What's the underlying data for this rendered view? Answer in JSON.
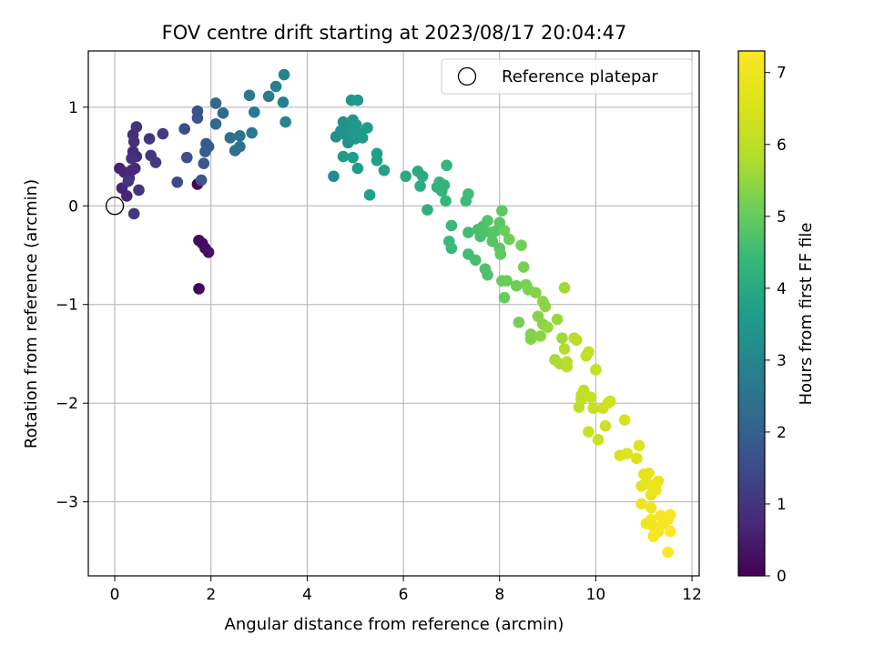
{
  "chart_data": {
    "type": "scatter",
    "title": "FOV centre drift starting at 2023/08/17 20:04:47",
    "xlabel": "Angular distance from reference (arcmin)",
    "ylabel": "Rotation from reference (arcmin)",
    "xlim": [
      -0.55,
      12.15
    ],
    "ylim": [
      -3.75,
      1.57
    ],
    "xticks": [
      0,
      2,
      4,
      6,
      8,
      10,
      12
    ],
    "yticks": [
      1,
      0,
      -1,
      -2,
      -3
    ],
    "xtick_labels": [
      "0",
      "2",
      "4",
      "6",
      "8",
      "10",
      "12"
    ],
    "ytick_labels": [
      "1",
      "0",
      "−1",
      "−2",
      "−3"
    ],
    "grid": true,
    "legend": {
      "placement": "top-right",
      "label": "Reference platepar",
      "marker": "open-circle"
    },
    "reference_point": {
      "x": 0,
      "y": 0
    },
    "colorbar": {
      "label": "Hours from first FF file",
      "colormap": "viridis",
      "range": [
        0,
        7.3
      ],
      "ticks": [
        0,
        1,
        2,
        3,
        4,
        5,
        6,
        7
      ],
      "tick_labels": [
        "0",
        "1",
        "2",
        "3",
        "4",
        "5",
        "6",
        "7"
      ]
    },
    "points": [
      {
        "x": 1.75,
        "y": -0.84,
        "t": 0.05
      },
      {
        "x": 1.72,
        "y": 0.22,
        "t": 0.1
      },
      {
        "x": 1.75,
        "y": -0.35,
        "t": 0.15
      },
      {
        "x": 1.82,
        "y": -0.38,
        "t": 0.2
      },
      {
        "x": 1.88,
        "y": -0.43,
        "t": 0.25
      },
      {
        "x": 1.95,
        "y": -0.47,
        "t": 0.3
      },
      {
        "x": 0.1,
        "y": 0.38,
        "t": 0.6
      },
      {
        "x": 0.2,
        "y": 0.34,
        "t": 0.65
      },
      {
        "x": 0.25,
        "y": 0.1,
        "t": 0.7
      },
      {
        "x": 0.15,
        "y": 0.18,
        "t": 0.7
      },
      {
        "x": 0.3,
        "y": 0.28,
        "t": 0.75
      },
      {
        "x": 0.35,
        "y": 0.36,
        "t": 0.75
      },
      {
        "x": 0.42,
        "y": 0.38,
        "t": 0.8
      },
      {
        "x": 0.38,
        "y": 0.55,
        "t": 0.85
      },
      {
        "x": 0.45,
        "y": 0.5,
        "t": 0.85
      },
      {
        "x": 0.4,
        "y": 0.65,
        "t": 0.9
      },
      {
        "x": 0.38,
        "y": 0.72,
        "t": 0.9
      },
      {
        "x": 0.45,
        "y": 0.8,
        "t": 0.95
      },
      {
        "x": 0.35,
        "y": 0.48,
        "t": 0.95
      },
      {
        "x": 0.28,
        "y": 0.25,
        "t": 1.0
      },
      {
        "x": 0.5,
        "y": 0.16,
        "t": 1.0
      },
      {
        "x": 0.4,
        "y": -0.08,
        "t": 1.05
      },
      {
        "x": 0.72,
        "y": 0.68,
        "t": 1.0
      },
      {
        "x": 0.75,
        "y": 0.51,
        "t": 1.05
      },
      {
        "x": 0.85,
        "y": 0.44,
        "t": 1.1
      },
      {
        "x": 1.0,
        "y": 0.73,
        "t": 1.15
      },
      {
        "x": 1.3,
        "y": 0.24,
        "t": 1.5
      },
      {
        "x": 1.45,
        "y": 0.78,
        "t": 1.55
      },
      {
        "x": 1.5,
        "y": 0.49,
        "t": 1.6
      },
      {
        "x": 1.72,
        "y": 0.96,
        "t": 1.7
      },
      {
        "x": 1.72,
        "y": 0.89,
        "t": 1.75
      },
      {
        "x": 1.8,
        "y": 0.26,
        "t": 1.8
      },
      {
        "x": 1.85,
        "y": 0.43,
        "t": 1.85
      },
      {
        "x": 1.9,
        "y": 0.63,
        "t": 1.9
      },
      {
        "x": 1.95,
        "y": 0.6,
        "t": 1.9
      },
      {
        "x": 1.88,
        "y": 0.55,
        "t": 1.95
      },
      {
        "x": 2.1,
        "y": 1.04,
        "t": 2.2
      },
      {
        "x": 2.1,
        "y": 0.83,
        "t": 2.25
      },
      {
        "x": 2.25,
        "y": 0.94,
        "t": 2.3
      },
      {
        "x": 2.4,
        "y": 0.69,
        "t": 2.4
      },
      {
        "x": 2.5,
        "y": 0.56,
        "t": 2.45
      },
      {
        "x": 2.6,
        "y": 0.6,
        "t": 2.5
      },
      {
        "x": 2.6,
        "y": 0.71,
        "t": 2.5
      },
      {
        "x": 2.8,
        "y": 1.12,
        "t": 2.6
      },
      {
        "x": 2.85,
        "y": 0.74,
        "t": 2.65
      },
      {
        "x": 2.9,
        "y": 0.95,
        "t": 2.7
      },
      {
        "x": 3.2,
        "y": 1.11,
        "t": 2.8
      },
      {
        "x": 3.35,
        "y": 1.21,
        "t": 2.85
      },
      {
        "x": 3.5,
        "y": 1.05,
        "t": 2.9
      },
      {
        "x": 3.52,
        "y": 1.33,
        "t": 2.95
      },
      {
        "x": 3.55,
        "y": 0.85,
        "t": 3.0
      },
      {
        "x": 4.55,
        "y": 0.3,
        "t": 3.2
      },
      {
        "x": 4.6,
        "y": 0.7,
        "t": 3.25
      },
      {
        "x": 4.7,
        "y": 0.76,
        "t": 3.3
      },
      {
        "x": 4.75,
        "y": 0.85,
        "t": 3.3
      },
      {
        "x": 4.8,
        "y": 0.72,
        "t": 3.35
      },
      {
        "x": 4.85,
        "y": 0.64,
        "t": 3.35
      },
      {
        "x": 4.9,
        "y": 0.8,
        "t": 3.4
      },
      {
        "x": 4.92,
        "y": 1.07,
        "t": 3.4
      },
      {
        "x": 4.95,
        "y": 0.87,
        "t": 3.45
      },
      {
        "x": 5.0,
        "y": 0.68,
        "t": 3.45
      },
      {
        "x": 5.05,
        "y": 1.07,
        "t": 3.5
      },
      {
        "x": 5.1,
        "y": 0.73,
        "t": 3.5
      },
      {
        "x": 4.95,
        "y": 0.75,
        "t": 3.55
      },
      {
        "x": 5.02,
        "y": 0.82,
        "t": 3.55
      },
      {
        "x": 5.15,
        "y": 0.69,
        "t": 3.6
      },
      {
        "x": 5.25,
        "y": 0.79,
        "t": 3.6
      },
      {
        "x": 4.75,
        "y": 0.5,
        "t": 3.6
      },
      {
        "x": 4.95,
        "y": 0.49,
        "t": 3.65
      },
      {
        "x": 5.05,
        "y": 0.38,
        "t": 3.65
      },
      {
        "x": 5.3,
        "y": 0.11,
        "t": 3.7
      },
      {
        "x": 5.45,
        "y": 0.53,
        "t": 3.7
      },
      {
        "x": 5.45,
        "y": 0.46,
        "t": 3.75
      },
      {
        "x": 5.6,
        "y": 0.36,
        "t": 3.8
      },
      {
        "x": 6.05,
        "y": 0.3,
        "t": 4.0
      },
      {
        "x": 6.3,
        "y": 0.35,
        "t": 4.05
      },
      {
        "x": 6.35,
        "y": 0.2,
        "t": 4.1
      },
      {
        "x": 6.4,
        "y": 0.3,
        "t": 4.1
      },
      {
        "x": 6.5,
        "y": -0.04,
        "t": 4.15
      },
      {
        "x": 6.7,
        "y": 0.19,
        "t": 4.2
      },
      {
        "x": 6.75,
        "y": 0.24,
        "t": 4.25
      },
      {
        "x": 6.8,
        "y": 0.15,
        "t": 4.3
      },
      {
        "x": 6.85,
        "y": 0.21,
        "t": 4.3
      },
      {
        "x": 6.9,
        "y": 0.41,
        "t": 4.35
      },
      {
        "x": 6.88,
        "y": 0.05,
        "t": 4.35
      },
      {
        "x": 6.95,
        "y": -0.36,
        "t": 4.4
      },
      {
        "x": 7.0,
        "y": -0.2,
        "t": 4.4
      },
      {
        "x": 7.0,
        "y": -0.43,
        "t": 4.45
      },
      {
        "x": 7.3,
        "y": 0.05,
        "t": 4.5
      },
      {
        "x": 7.35,
        "y": 0.12,
        "t": 4.5
      },
      {
        "x": 7.35,
        "y": -0.27,
        "t": 4.55
      },
      {
        "x": 7.35,
        "y": -0.49,
        "t": 4.55
      },
      {
        "x": 7.5,
        "y": -0.55,
        "t": 4.6
      },
      {
        "x": 7.55,
        "y": -0.24,
        "t": 4.6
      },
      {
        "x": 7.6,
        "y": -0.31,
        "t": 4.65
      },
      {
        "x": 7.65,
        "y": -0.21,
        "t": 4.65
      },
      {
        "x": 7.7,
        "y": -0.64,
        "t": 4.7
      },
      {
        "x": 7.75,
        "y": -0.7,
        "t": 4.7
      },
      {
        "x": 7.75,
        "y": -0.15,
        "t": 4.75
      },
      {
        "x": 7.8,
        "y": -0.27,
        "t": 4.75
      },
      {
        "x": 7.85,
        "y": -0.36,
        "t": 4.8
      },
      {
        "x": 7.9,
        "y": -0.26,
        "t": 4.8
      },
      {
        "x": 8.0,
        "y": -0.17,
        "t": 4.85
      },
      {
        "x": 8.0,
        "y": -0.43,
        "t": 4.85
      },
      {
        "x": 8.02,
        "y": -0.49,
        "t": 4.9
      },
      {
        "x": 8.05,
        "y": -0.05,
        "t": 4.9
      },
      {
        "x": 8.05,
        "y": -0.76,
        "t": 5.0
      },
      {
        "x": 8.1,
        "y": -0.93,
        "t": 5.0
      },
      {
        "x": 8.1,
        "y": -0.25,
        "t": 5.05
      },
      {
        "x": 8.15,
        "y": -0.76,
        "t": 5.05
      },
      {
        "x": 8.2,
        "y": -0.34,
        "t": 5.1
      },
      {
        "x": 8.35,
        "y": -0.81,
        "t": 5.1
      },
      {
        "x": 8.4,
        "y": -1.18,
        "t": 5.15
      },
      {
        "x": 8.45,
        "y": -0.4,
        "t": 5.15
      },
      {
        "x": 8.5,
        "y": -0.62,
        "t": 5.2
      },
      {
        "x": 8.55,
        "y": -0.8,
        "t": 5.2
      },
      {
        "x": 8.6,
        "y": -0.85,
        "t": 5.25
      },
      {
        "x": 8.65,
        "y": -1.3,
        "t": 5.3
      },
      {
        "x": 8.65,
        "y": -1.35,
        "t": 5.3
      },
      {
        "x": 8.75,
        "y": -0.88,
        "t": 5.35
      },
      {
        "x": 8.8,
        "y": -1.12,
        "t": 5.35
      },
      {
        "x": 8.85,
        "y": -1.32,
        "t": 5.4
      },
      {
        "x": 8.9,
        "y": -1.2,
        "t": 5.4
      },
      {
        "x": 8.9,
        "y": -0.97,
        "t": 5.45
      },
      {
        "x": 8.95,
        "y": -1.02,
        "t": 5.45
      },
      {
        "x": 9.0,
        "y": -1.23,
        "t": 5.5
      },
      {
        "x": 9.2,
        "y": -1.15,
        "t": 5.55
      },
      {
        "x": 9.3,
        "y": -1.34,
        "t": 5.6
      },
      {
        "x": 9.35,
        "y": -0.83,
        "t": 5.6
      },
      {
        "x": 9.15,
        "y": -1.56,
        "t": 5.7
      },
      {
        "x": 9.25,
        "y": -1.6,
        "t": 5.75
      },
      {
        "x": 9.35,
        "y": -1.45,
        "t": 5.8
      },
      {
        "x": 9.4,
        "y": -1.58,
        "t": 5.85
      },
      {
        "x": 9.4,
        "y": -1.63,
        "t": 5.85
      },
      {
        "x": 9.55,
        "y": -1.34,
        "t": 5.9
      },
      {
        "x": 9.6,
        "y": -1.36,
        "t": 5.9
      },
      {
        "x": 9.65,
        "y": -2.04,
        "t": 5.95
      },
      {
        "x": 9.7,
        "y": -1.92,
        "t": 6.0
      },
      {
        "x": 9.7,
        "y": -1.96,
        "t": 6.0
      },
      {
        "x": 9.75,
        "y": -1.87,
        "t": 6.05
      },
      {
        "x": 9.8,
        "y": -1.52,
        "t": 6.05
      },
      {
        "x": 9.85,
        "y": -1.48,
        "t": 6.1
      },
      {
        "x": 9.9,
        "y": -1.94,
        "t": 6.1
      },
      {
        "x": 9.95,
        "y": -2.05,
        "t": 6.15
      },
      {
        "x": 10.0,
        "y": -1.66,
        "t": 6.15
      },
      {
        "x": 9.85,
        "y": -2.29,
        "t": 6.2
      },
      {
        "x": 10.05,
        "y": -2.37,
        "t": 6.2
      },
      {
        "x": 10.15,
        "y": -2.05,
        "t": 6.25
      },
      {
        "x": 10.2,
        "y": -2.23,
        "t": 6.25
      },
      {
        "x": 10.25,
        "y": -2.0,
        "t": 6.3
      },
      {
        "x": 10.3,
        "y": -1.98,
        "t": 6.3
      },
      {
        "x": 10.5,
        "y": -2.53,
        "t": 6.5
      },
      {
        "x": 10.6,
        "y": -2.17,
        "t": 6.5
      },
      {
        "x": 10.65,
        "y": -2.51,
        "t": 6.55
      },
      {
        "x": 10.85,
        "y": -2.56,
        "t": 6.6
      },
      {
        "x": 10.9,
        "y": -2.43,
        "t": 6.65
      },
      {
        "x": 10.95,
        "y": -2.84,
        "t": 6.7
      },
      {
        "x": 11.0,
        "y": -2.72,
        "t": 6.75
      },
      {
        "x": 11.05,
        "y": -2.8,
        "t": 6.8
      },
      {
        "x": 11.1,
        "y": -2.71,
        "t": 6.8
      },
      {
        "x": 11.1,
        "y": -2.82,
        "t": 6.85
      },
      {
        "x": 11.15,
        "y": -2.93,
        "t": 6.85
      },
      {
        "x": 11.25,
        "y": -2.88,
        "t": 6.9
      },
      {
        "x": 11.3,
        "y": -2.79,
        "t": 6.9
      },
      {
        "x": 10.95,
        "y": -3.02,
        "t": 6.95
      },
      {
        "x": 11.05,
        "y": -3.22,
        "t": 7.0
      },
      {
        "x": 11.15,
        "y": -3.06,
        "t": 7.0
      },
      {
        "x": 11.15,
        "y": -3.18,
        "t": 7.05
      },
      {
        "x": 11.2,
        "y": -3.25,
        "t": 7.05
      },
      {
        "x": 11.2,
        "y": -3.35,
        "t": 7.1
      },
      {
        "x": 11.3,
        "y": -3.3,
        "t": 7.1
      },
      {
        "x": 11.35,
        "y": -3.14,
        "t": 7.15
      },
      {
        "x": 11.4,
        "y": -3.22,
        "t": 7.15
      },
      {
        "x": 11.5,
        "y": -3.18,
        "t": 7.2
      },
      {
        "x": 11.55,
        "y": -3.13,
        "t": 7.2
      },
      {
        "x": 11.55,
        "y": -3.3,
        "t": 7.25
      },
      {
        "x": 11.5,
        "y": -3.51,
        "t": 7.3
      }
    ]
  }
}
